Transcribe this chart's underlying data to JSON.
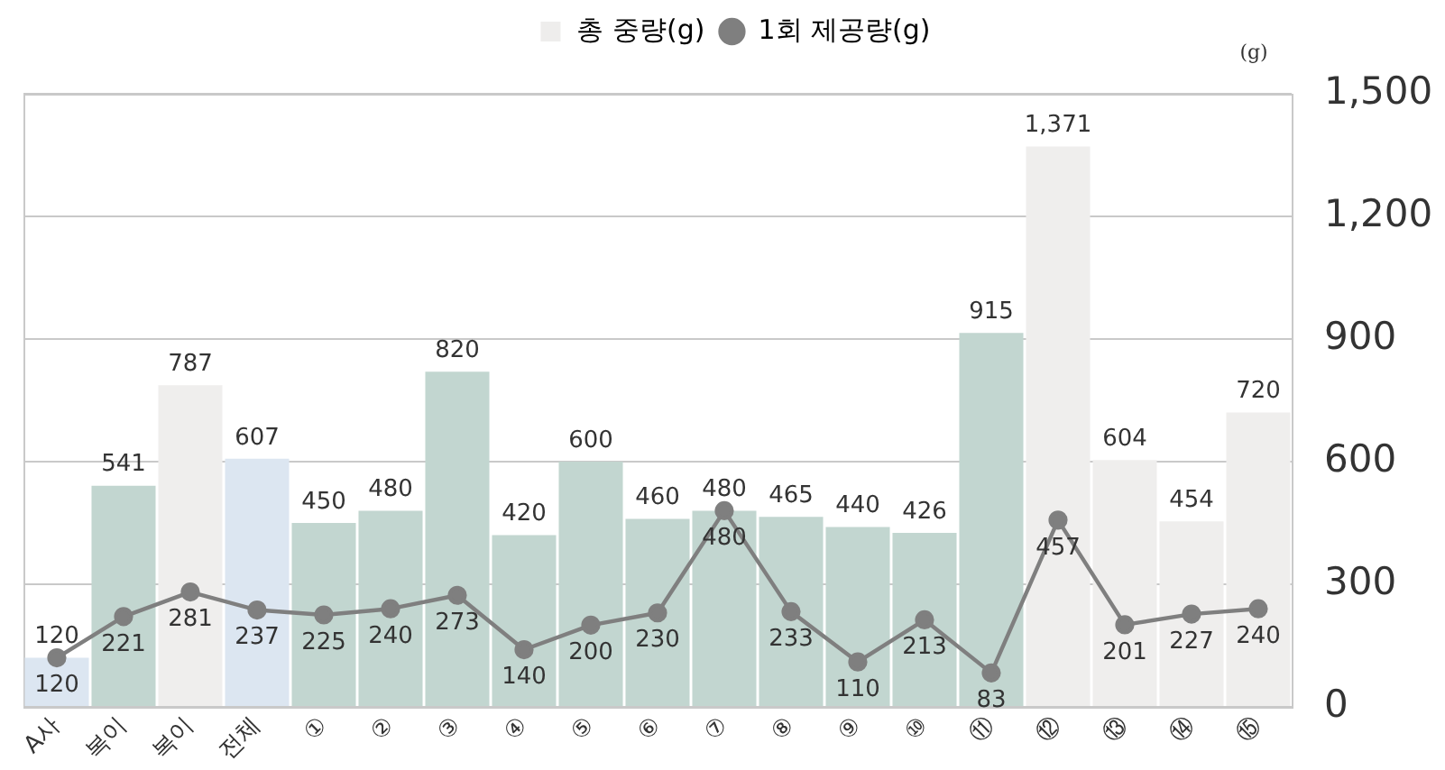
{
  "chart_data": {
    "type": "bar",
    "categories": [
      "A사",
      "복이",
      "복이",
      "전체",
      "①",
      "②",
      "③",
      "④",
      "⑤",
      "⑥",
      "⑦",
      "⑧",
      "⑨",
      "⑩",
      "⑪",
      "⑫",
      "⑬",
      "⑭",
      "⑮"
    ],
    "series": [
      {
        "name": "총 중량(g)",
        "type": "bar",
        "color": "#eeedec",
        "colors": [
          "#dce6f1",
          "#c2d6d0",
          "#efeeed",
          "#dce6f1",
          "#c2d6d0",
          "#c2d6d0",
          "#c2d6d0",
          "#c2d6d0",
          "#c2d6d0",
          "#c2d6d0",
          "#c2d6d0",
          "#c2d6d0",
          "#c2d6d0",
          "#c2d6d0",
          "#c2d6d0",
          "#efeeed",
          "#efeeed",
          "#efeeed",
          "#efeeed"
        ],
        "values": [
          120,
          541,
          787,
          607,
          450,
          480,
          820,
          420,
          600,
          460,
          480,
          465,
          440,
          426,
          915,
          1371,
          604,
          454,
          720
        ],
        "value_labels": [
          "120",
          "541",
          "787",
          "607",
          "450",
          "480",
          "820",
          "420",
          "600",
          "460",
          "480",
          "465",
          "440",
          "426",
          "915",
          "1,371",
          "604",
          "454",
          "720"
        ]
      },
      {
        "name": "1회 제공량(g)",
        "type": "line",
        "color": "#7f7f7f",
        "marker": "circle",
        "values": [
          120,
          221,
          281,
          237,
          225,
          240,
          273,
          140,
          200,
          230,
          480,
          233,
          110,
          213,
          83,
          457,
          201,
          227,
          240
        ],
        "value_labels": [
          "120",
          "221",
          "281",
          "237",
          "225",
          "240",
          "273",
          "140",
          "200",
          "230",
          "480",
          "233",
          "110",
          "213",
          "83",
          "457",
          "201",
          "227",
          "240"
        ]
      }
    ],
    "ylabel": "(g)",
    "ylim": [
      0,
      1500
    ],
    "yticks": [
      0,
      300,
      600,
      900,
      {
        "value": 1200,
        "label": "1,200"
      },
      {
        "value": 1500,
        "label": "1,500"
      }
    ],
    "grid": "y",
    "legend": "top"
  }
}
